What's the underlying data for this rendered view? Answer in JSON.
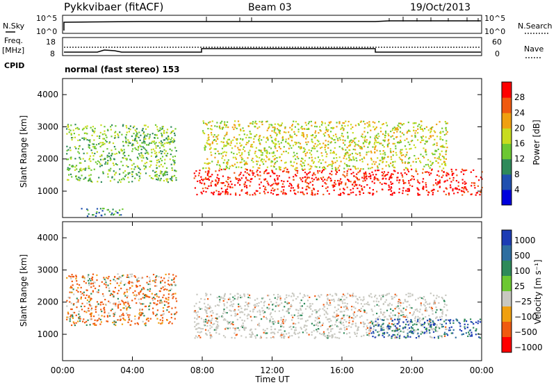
{
  "header": {
    "station": "Pykkvibaer (fitACF)",
    "beam": "Beam 03",
    "date": "19/Oct/2013"
  },
  "top_panels": {
    "nsky_label": "N.Sky",
    "nsearch_label": "N.Search",
    "noise_left_ticks": [
      "10^5",
      "10^0"
    ],
    "noise_right_ticks": [
      "10^5",
      "10^0"
    ],
    "freq_label": "Freq.",
    "freq_unit": "[MHz]",
    "freq_ticks": [
      "18",
      "8"
    ],
    "nave_label": "Nave",
    "nave_ticks": [
      "60",
      "0"
    ],
    "cpid_label": "CPID",
    "cpid_value": "normal (fast stereo) 153"
  },
  "chart_data": [
    {
      "type": "heatmap",
      "title": "Power",
      "ylabel": "Slant Range [km]",
      "xlabel": "",
      "ylim": [
        180,
        4500
      ],
      "yticks": [
        "1000",
        "2000",
        "3000",
        "4000"
      ],
      "colorbar": {
        "label": "Power [dB]",
        "ticks": [
          "4",
          "8",
          "12",
          "16",
          "20",
          "24",
          "28"
        ],
        "colors": [
          "#0000dd",
          "#2050b0",
          "#2e8a5a",
          "#6cc832",
          "#c8dc1e",
          "#f0a010",
          "#f05a10",
          "#ff0000"
        ]
      },
      "regions": [
        {
          "from_h": 0.2,
          "to_h": 6.5,
          "range": [
            1300,
            3100
          ],
          "level": 3
        },
        {
          "from_h": 1.0,
          "to_h": 3.5,
          "range": [
            200,
            500
          ],
          "level": 2
        },
        {
          "from_h": 7.5,
          "to_h": 24.0,
          "range": [
            900,
            1700
          ],
          "level": 7
        },
        {
          "from_h": 8.0,
          "to_h": 22.0,
          "range": [
            1700,
            3200
          ],
          "level": 4
        }
      ]
    },
    {
      "type": "heatmap",
      "title": "Velocity",
      "ylabel": "Slant Range [km]",
      "xlabel": "Time UT",
      "ylim": [
        180,
        4500
      ],
      "yticks": [
        "1000",
        "2000",
        "3000",
        "4000"
      ],
      "xticks": [
        "00:00",
        "04:00",
        "08:00",
        "12:00",
        "16:00",
        "20:00",
        "00:00"
      ],
      "colorbar": {
        "label": "Velocity [m s⁻¹]",
        "ticks": [
          "1000",
          "500",
          "100",
          "25",
          "−25",
          "−100",
          "−500",
          "−1000"
        ],
        "colors": [
          "#1c3cb4",
          "#2e6ea0",
          "#2e8a5a",
          "#6cc832",
          "#c8c8c0",
          "#f0a010",
          "#f05a10",
          "#ff0000"
        ]
      },
      "regions": [
        {
          "from_h": 0.2,
          "to_h": 6.5,
          "range": [
            1300,
            2900
          ],
          "class": "negative"
        },
        {
          "from_h": 7.5,
          "to_h": 22.0,
          "range": [
            900,
            2300
          ],
          "class": "near_zero"
        },
        {
          "from_h": 17.5,
          "to_h": 24.0,
          "range": [
            900,
            1500
          ],
          "class": "positive"
        }
      ]
    }
  ]
}
